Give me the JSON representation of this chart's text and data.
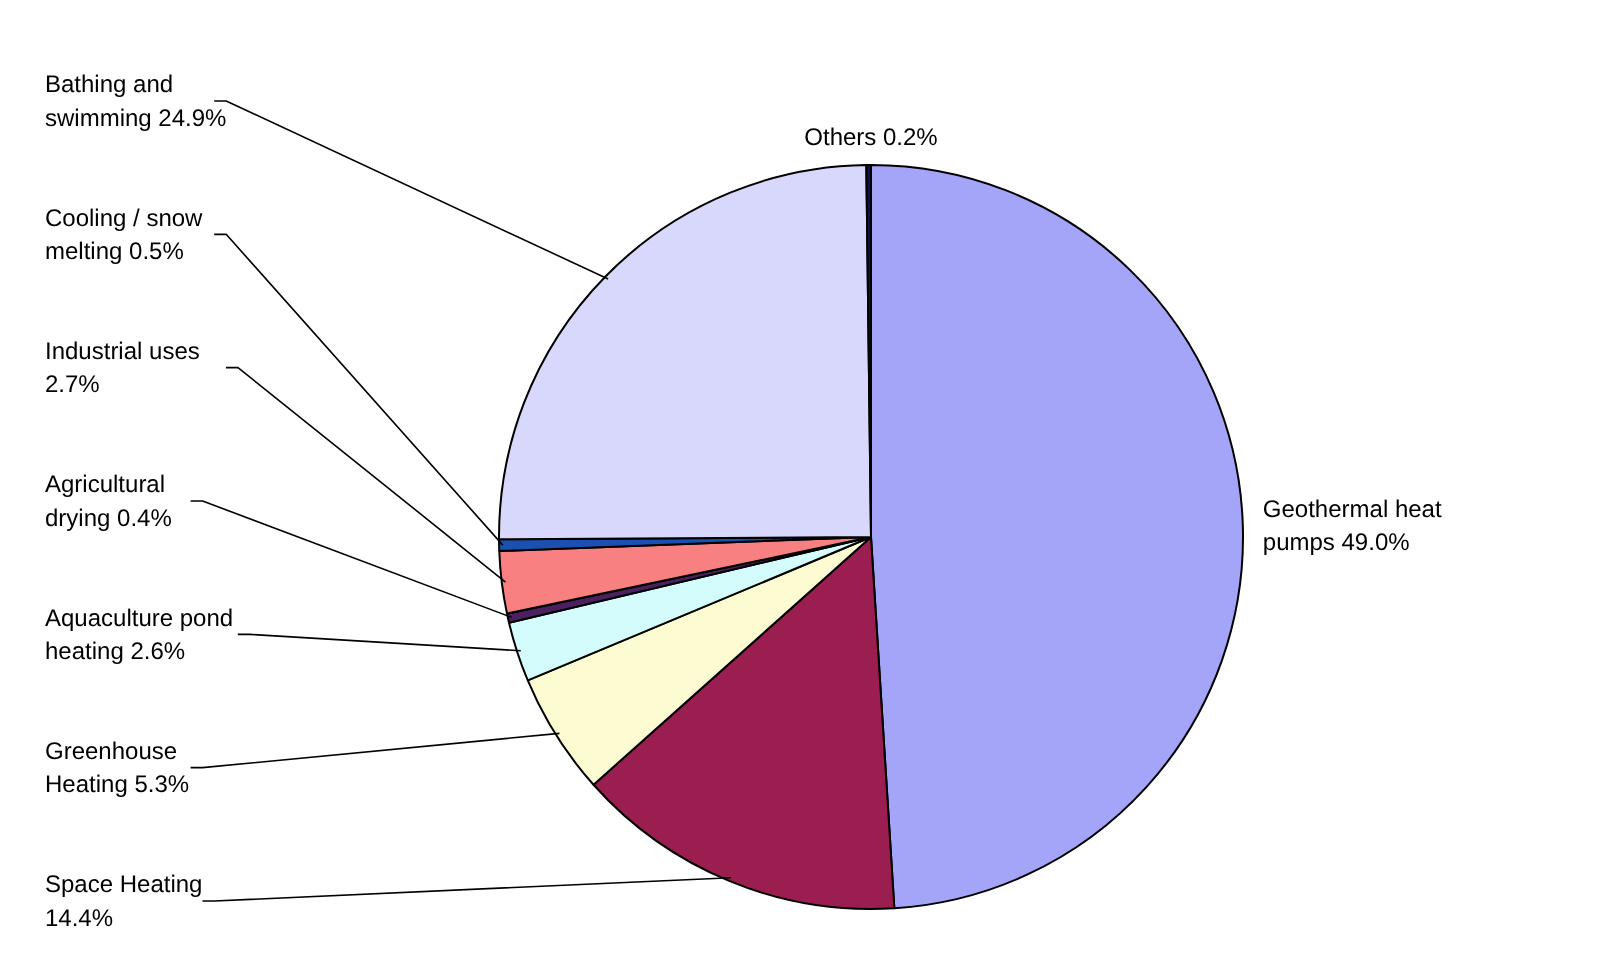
{
  "chart_data": {
    "type": "pie",
    "categories": [
      "Geothermal heat pumps",
      "Space Heating",
      "Greenhouse Heating",
      "Aquaculture pond heating",
      "Agricultural drying",
      "Industrial uses",
      "Cooling / snow melting",
      "Bathing and swimming",
      "Others"
    ],
    "values": [
      49.0,
      14.4,
      5.3,
      2.6,
      0.4,
      2.7,
      0.5,
      24.9,
      0.2
    ],
    "value_labels": [
      "49.0%",
      "14.4%",
      "5.3%",
      "2.6%",
      "0.4%",
      "2.7%",
      "0.5%",
      "24.9%",
      "0.2%"
    ],
    "colors": [
      "#a4a4f8",
      "#9a1e50",
      "#fdfbd2",
      "#d4fcfc",
      "#4a2060",
      "#f88080",
      "#1a50b0",
      "#d8d8fc",
      "#101050"
    ]
  }
}
